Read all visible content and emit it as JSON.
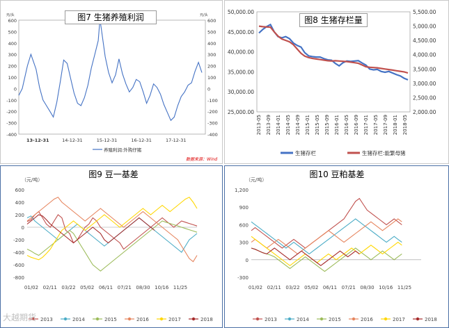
{
  "charts": [
    {
      "title": "图7 生猪养殖利润",
      "unit_left": "元/头",
      "unit_right": "元/头",
      "source": "数据来源：Wind",
      "legend": "养殖利润:外购仔猪"
    },
    {
      "title": "图8 生猪存栏量"
    },
    {
      "title": "图9 豆一基差",
      "unit": "（元/吨）"
    },
    {
      "title": "图10 豆粕基差",
      "unit": "（元/吨）"
    }
  ],
  "watermark": "大越期货",
  "chart_data": [
    {
      "type": "line",
      "title": "图7 生猪养殖利润",
      "x_ticks": [
        "13-12-31",
        "14-12-31",
        "15-12-31",
        "16-12-31",
        "17-12-31"
      ],
      "y_ticks": [
        600,
        500,
        400,
        300,
        200,
        100,
        0,
        -100,
        -200,
        -300,
        -400
      ],
      "ylim": [
        -400,
        600
      ],
      "y_label": "元/头",
      "y2_label": "元/头",
      "series": [
        {
          "name": "养殖利润:外购仔猪",
          "color": "#4472c4",
          "x": [
            0,
            0.1,
            0.25,
            0.35,
            0.5,
            0.6,
            0.7,
            0.8,
            0.9,
            1.0,
            1.1,
            1.2,
            1.3,
            1.4,
            1.5,
            1.6,
            1.7,
            1.8,
            1.9,
            2.0,
            2.1,
            2.2,
            2.3,
            2.35,
            2.4,
            2.5,
            2.6,
            2.7,
            2.8,
            2.9,
            3.0,
            3.1,
            3.2,
            3.3,
            3.4,
            3.5,
            3.6,
            3.7,
            3.8,
            3.9,
            4.0,
            4.1,
            4.2,
            4.3,
            4.4,
            4.5,
            4.6,
            4.7,
            4.8,
            4.9,
            5.0,
            5.1,
            5.2,
            5.3
          ],
          "values": [
            -60,
            0,
            200,
            300,
            170,
            10,
            -100,
            -150,
            -200,
            -250,
            -120,
            60,
            250,
            220,
            90,
            -40,
            -130,
            -150,
            -80,
            30,
            180,
            300,
            420,
            610,
            500,
            280,
            140,
            50,
            120,
            260,
            130,
            40,
            -30,
            10,
            80,
            60,
            -30,
            -130,
            -60,
            40,
            10,
            -50,
            -140,
            -210,
            -280,
            -250,
            -150,
            -70,
            -30,
            30,
            50,
            150,
            230,
            140
          ]
        }
      ]
    },
    {
      "type": "line",
      "title": "图8 生猪存栏量",
      "x_ticks": [
        "2013-05",
        "2013-09",
        "2014-01",
        "2014-05",
        "2014-09",
        "2015-01",
        "2015-05",
        "2015-09",
        "2016-01",
        "2016-05",
        "2016-09",
        "2017-01",
        "2017-05",
        "2017-09",
        "2018-01",
        "2018-05"
      ],
      "y_ticks": [
        50000,
        45000,
        40000,
        35000,
        30000,
        25000
      ],
      "y_tick_labels": [
        "50,000.00",
        "45,000.00",
        "40,000.00",
        "35,000.00",
        "30,000.00",
        "25,000.00"
      ],
      "ylim": [
        25000,
        50000
      ],
      "y2_ticks": [
        5500,
        5000,
        4500,
        4000,
        3500,
        3000,
        2500,
        2000
      ],
      "y2_tick_labels": [
        "5,500.00",
        "5,000.00",
        "4,500.00",
        "4,000.00",
        "3,500.00",
        "3,000.00",
        "2,500.00",
        "2,000.00"
      ],
      "y2lim": [
        2000,
        5500
      ],
      "legend_position": "bottom",
      "series": [
        {
          "name": "生猪存栏",
          "axis": "left",
          "color": "#4472c4",
          "values": [
            44700,
            45600,
            46300,
            46800,
            45000,
            43800,
            43500,
            43800,
            43300,
            42200,
            41600,
            41200,
            39800,
            39000,
            38800,
            38700,
            38700,
            38300,
            38000,
            37900,
            37100,
            36500,
            37300,
            37700,
            37600,
            37700,
            37800,
            37200,
            36700,
            35700,
            35500,
            35600,
            35100,
            34900,
            35100,
            34700,
            34300,
            34000,
            33400,
            33000
          ]
        },
        {
          "name": "生猪存栏:能繁母猪",
          "axis": "right",
          "color": "#c0504d",
          "values": [
            5000,
            4980,
            4970,
            4960,
            4800,
            4650,
            4550,
            4500,
            4450,
            4350,
            4200,
            4050,
            3950,
            3900,
            3870,
            3850,
            3830,
            3810,
            3790,
            3780,
            3790,
            3780,
            3770,
            3760,
            3740,
            3720,
            3700,
            3640,
            3580,
            3560,
            3550,
            3540,
            3520,
            3500,
            3480,
            3460,
            3440,
            3420,
            3400,
            3360
          ]
        }
      ]
    },
    {
      "type": "line",
      "title": "图9 豆一基差",
      "y_label": "（元/吨）",
      "x_ticks": [
        "01/02",
        "02/11",
        "03/22",
        "05/02",
        "06/11",
        "07/21",
        "08/30",
        "10/16",
        "11/25"
      ],
      "y_ticks": [
        600,
        400,
        200,
        0,
        -200,
        -400,
        -600,
        -800
      ],
      "ylim": [
        -800,
        600
      ],
      "legend_position": "bottom",
      "series": [
        {
          "name": "2013",
          "color": "#c0504d",
          "values": [
            90,
            120,
            200,
            250,
            150,
            50,
            0,
            100,
            200,
            150,
            -50,
            -100,
            -250,
            -200,
            -100,
            0,
            50,
            150,
            100,
            0,
            -50,
            -100,
            -150,
            -200,
            -250,
            -350,
            -300,
            -250,
            -200,
            -150,
            -100,
            -50,
            0,
            50,
            100,
            150,
            100,
            50,
            0,
            50,
            100,
            80,
            60,
            40,
            20
          ]
        },
        {
          "name": "2014",
          "color": "#4bacc6",
          "values": [
            150,
            180,
            100,
            50,
            0,
            -50,
            -100,
            -150,
            -200,
            -150,
            -100,
            -50,
            0,
            50,
            0,
            -50,
            -100,
            -150,
            -200,
            -250,
            -300,
            -250,
            -200,
            -150,
            -100,
            -50,
            0,
            50,
            100,
            150,
            100,
            50,
            0,
            -50,
            -100,
            -150,
            -200,
            -250,
            -300,
            -350,
            -400,
            -300,
            -200,
            -150,
            -100
          ]
        },
        {
          "name": "2015",
          "color": "#9bbb59",
          "values": [
            -350,
            -380,
            -420,
            -450,
            -400,
            -350,
            -300,
            -250,
            -200,
            -150,
            -100,
            -50,
            -100,
            -200,
            -300,
            -400,
            -500,
            -600,
            -650,
            -700,
            -650,
            -600,
            -550,
            -500,
            -450,
            -400,
            -350,
            -300,
            -250,
            -200,
            -150,
            -100,
            -50,
            0,
            50,
            100,
            80,
            60,
            40,
            20,
            0,
            -20,
            -40,
            -60,
            -80
          ]
        },
        {
          "name": "2016",
          "color": "#e6855e",
          "values": [
            100,
            150,
            200,
            250,
            300,
            350,
            400,
            450,
            480,
            400,
            350,
            300,
            250,
            200,
            150,
            100,
            150,
            200,
            250,
            300,
            250,
            200,
            150,
            100,
            50,
            0,
            50,
            100,
            150,
            200,
            250,
            200,
            150,
            100,
            50,
            0,
            -50,
            -100,
            -150,
            -200,
            -300,
            -400,
            -500,
            -550,
            -450
          ]
        },
        {
          "name": "2017",
          "color": "#ffd700",
          "values": [
            -450,
            -480,
            -500,
            -520,
            -480,
            -420,
            -350,
            -250,
            -150,
            -50,
            0,
            50,
            100,
            50,
            0,
            -50,
            0,
            50,
            100,
            150,
            200,
            150,
            100,
            50,
            0,
            50,
            100,
            150,
            200,
            250,
            300,
            250,
            200,
            250,
            300,
            350,
            300,
            250,
            300,
            350,
            400,
            450,
            480,
            400,
            300
          ]
        },
        {
          "name": "2018",
          "color": "#a52a2a",
          "values": [
            50,
            100,
            150,
            200,
            180,
            120,
            50,
            0,
            -50,
            -100,
            -150,
            -200,
            -250,
            -200,
            -150,
            -100,
            -50,
            0,
            -50,
            -100,
            -200,
            -250,
            -200,
            -150,
            -100,
            -50,
            0,
            50,
            100,
            150,
            100,
            50,
            0,
            -50
          ]
        }
      ]
    },
    {
      "type": "line",
      "title": "图10 豆粕基差",
      "y_label": "（元/吨）",
      "x_ticks": [
        "01/02",
        "02/11",
        "03/22",
        "05/02",
        "06/11",
        "07/21",
        "08/30",
        "10/16",
        "11/25"
      ],
      "y_ticks": [
        1200,
        900,
        600,
        300,
        0,
        -300
      ],
      "y_tick_labels": [
        "1,200",
        "900",
        "600",
        "300",
        "0",
        "-300"
      ],
      "ylim": [
        -300,
        1200
      ],
      "legend_position": "bottom",
      "series": [
        {
          "name": "2013",
          "color": "#c0504d",
          "values": [
            500,
            550,
            500,
            450,
            400,
            350,
            300,
            250,
            200,
            250,
            300,
            350,
            300,
            250,
            200,
            250,
            300,
            350,
            400,
            450,
            500,
            550,
            600,
            650,
            700,
            800,
            900,
            1000,
            1050,
            950,
            850,
            800,
            750,
            700,
            650,
            600,
            650,
            700,
            650,
            600
          ]
        },
        {
          "name": "2014",
          "color": "#4bacc6",
          "values": [
            650,
            600,
            550,
            500,
            450,
            400,
            350,
            300,
            250,
            200,
            250,
            300,
            250,
            200,
            150,
            100,
            150,
            200,
            250,
            300,
            350,
            400,
            450,
            500,
            550,
            600,
            650,
            700,
            650,
            600,
            550,
            500,
            450,
            400,
            350,
            300,
            350,
            400,
            350,
            300
          ]
        },
        {
          "name": "2015",
          "color": "#9bbb59",
          "values": [
            200,
            180,
            150,
            120,
            100,
            80,
            50,
            0,
            -50,
            -100,
            -150,
            -100,
            -50,
            0,
            50,
            0,
            -50,
            -100,
            -150,
            -200,
            -150,
            -100,
            -50,
            0,
            50,
            100,
            150,
            200,
            150,
            100,
            50,
            0,
            50,
            100,
            150,
            100,
            50,
            0,
            50,
            100
          ]
        },
        {
          "name": "2016",
          "color": "#e6855e",
          "values": [
            300,
            350,
            300,
            250,
            200,
            250,
            300,
            350,
            300,
            250,
            200,
            150,
            100,
            150,
            200,
            250,
            300,
            350,
            400,
            450,
            500,
            450,
            400,
            350,
            300,
            350,
            400,
            450,
            500,
            550,
            600,
            650,
            600,
            550,
            500,
            550,
            600,
            650,
            700,
            650
          ]
        },
        {
          "name": "2017",
          "color": "#ffd700",
          "values": [
            400,
            350,
            300,
            250,
            200,
            150,
            100,
            50,
            0,
            -50,
            -100,
            -50,
            0,
            50,
            100,
            50,
            0,
            -50,
            0,
            50,
            100,
            50,
            0,
            50,
            100,
            150,
            200,
            150,
            100,
            150,
            200,
            250,
            200,
            150,
            100,
            150,
            200,
            250,
            300,
            250
          ]
        },
        {
          "name": "2018",
          "color": "#a52a2a",
          "values": [
            200,
            180,
            150,
            120,
            100,
            150,
            200,
            150,
            100,
            50,
            0,
            50,
            100,
            150,
            100,
            50,
            0,
            -50,
            -100,
            -50,
            0,
            50,
            100,
            150,
            100,
            50,
            100,
            150,
            100
          ]
        }
      ]
    }
  ]
}
